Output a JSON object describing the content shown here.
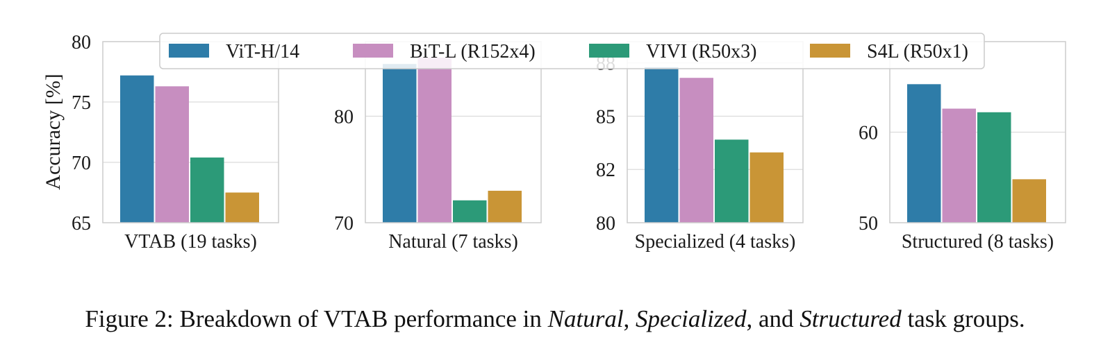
{
  "chart_data": {
    "type": "bar",
    "ylabel": "Accuracy [%]",
    "legend": {
      "placement": "top-center",
      "entries": [
        "ViT-H/14",
        "BiT-L (R152x4)",
        "VIVI (R50x3)",
        "S4L (R50x1)"
      ]
    },
    "colors": [
      "#2e7ca8",
      "#c78ec0",
      "#2c9a78",
      "#c99536"
    ],
    "panels": [
      {
        "xlabel": "VTAB (19 tasks)",
        "ylim": [
          65,
          80
        ],
        "yticks": [
          65,
          70,
          75,
          80
        ],
        "ytick_labels": [
          "65",
          "70",
          "75",
          "80"
        ],
        "grid": true,
        "series": [
          {
            "name": "ViT-H/14",
            "value": 77.2
          },
          {
            "name": "BiT-L (R152x4)",
            "value": 76.3
          },
          {
            "name": "VIVI (R50x3)",
            "value": 70.4
          },
          {
            "name": "S4L (R50x1)",
            "value": 67.5
          }
        ]
      },
      {
        "xlabel": "Natural (7 tasks)",
        "ylim": [
          70,
          87
        ],
        "yticks": [
          70,
          80
        ],
        "ytick_labels": [
          "70",
          "80"
        ],
        "grid": true,
        "series": [
          {
            "name": "ViT-H/14",
            "value": 84.9
          },
          {
            "name": "BiT-L (R152x4)",
            "value": 85.5
          },
          {
            "name": "VIVI (R50x3)",
            "value": 72.1
          },
          {
            "name": "S4L (R50x1)",
            "value": 73.0
          }
        ]
      },
      {
        "xlabel": "Specialized (4 tasks)",
        "ylim": [
          80,
          88.5
        ],
        "yticks": [
          80,
          82.5,
          85,
          87.5
        ],
        "ytick_labels": [
          "80",
          "82",
          "85",
          "88"
        ],
        "grid": true,
        "series": [
          {
            "name": "ViT-H/14",
            "value": 87.3
          },
          {
            "name": "BiT-L (R152x4)",
            "value": 86.8
          },
          {
            "name": "VIVI (R50x3)",
            "value": 83.9
          },
          {
            "name": "S4L (R50x1)",
            "value": 83.3
          }
        ]
      },
      {
        "xlabel": "Structured (8 tasks)",
        "ylim": [
          50,
          70
        ],
        "yticks": [
          50,
          60
        ],
        "ytick_labels": [
          "50",
          "60"
        ],
        "grid": true,
        "series": [
          {
            "name": "ViT-H/14",
            "value": 65.3
          },
          {
            "name": "BiT-L (R152x4)",
            "value": 62.6
          },
          {
            "name": "VIVI (R50x3)",
            "value": 62.2
          },
          {
            "name": "S4L (R50x1)",
            "value": 54.8
          }
        ]
      }
    ]
  },
  "caption": {
    "prefix": "Figure 2: Breakdown of VTAB performance in ",
    "natural": "Natural",
    "sep1": ", ",
    "specialized": "Specialized",
    "sep2": ", and ",
    "structured": "Structured",
    "suffix": " task groups."
  }
}
